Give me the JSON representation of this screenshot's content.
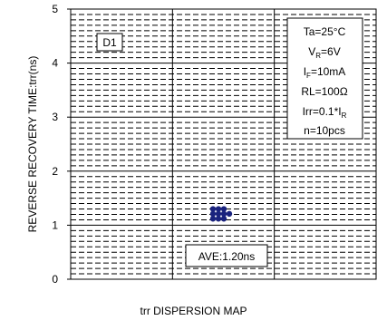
{
  "chart_data": {
    "type": "scatter",
    "title": "trr DISPERSION MAP",
    "ylabel": "REVERSE RECOVERY TIME:trr(ns)",
    "xlabel": "",
    "ylim": [
      0,
      5
    ],
    "yticks": [
      "0",
      "1",
      "2",
      "3",
      "4",
      "5"
    ],
    "grid": true,
    "series": [
      {
        "name": "D1",
        "points": [
          {
            "col": 0,
            "y": 1.3
          },
          {
            "col": 1,
            "y": 1.3
          },
          {
            "col": 2,
            "y": 1.3
          },
          {
            "col": 0,
            "y": 1.21
          },
          {
            "col": 1,
            "y": 1.21
          },
          {
            "col": 2,
            "y": 1.21
          },
          {
            "col": 3,
            "y": 1.21
          },
          {
            "col": 0,
            "y": 1.12
          },
          {
            "col": 1,
            "y": 1.12
          },
          {
            "col": 2,
            "y": 1.12
          }
        ]
      }
    ],
    "average_label": "AVE:1.20ns",
    "average_value": 1.2,
    "conditions": [
      "Ta=25°C",
      "VR=6V",
      "IF=10mA",
      "RL=100Ω",
      "Irr=0.1*IR",
      "n=10pcs"
    ],
    "colors": {
      "marker": "#1a237e",
      "axis": "#000000",
      "grid": "#000000"
    }
  }
}
